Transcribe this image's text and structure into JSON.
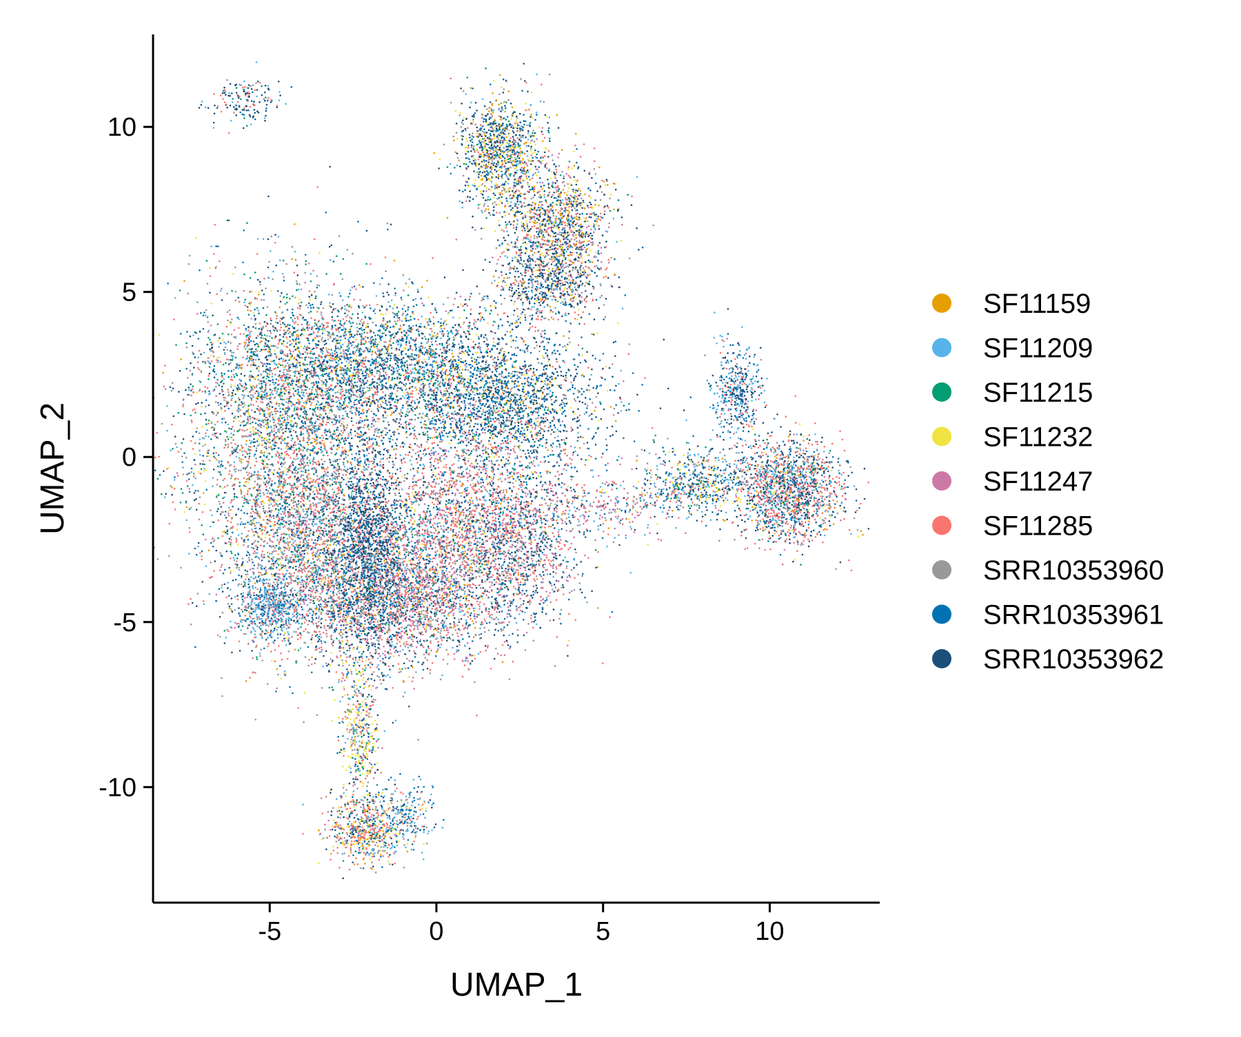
{
  "chart_data": {
    "type": "scatter",
    "title": "",
    "xlabel": "UMAP_1",
    "ylabel": "UMAP_2",
    "xlim": [
      -8.5,
      13.3
    ],
    "ylim": [
      -13.5,
      12.8
    ],
    "x_ticks": [
      -5,
      0,
      5,
      10
    ],
    "y_ticks": [
      -10,
      -5,
      0,
      5,
      10
    ],
    "x_tick_labels": [
      "-5",
      "0",
      "5",
      "10"
    ],
    "y_tick_labels": [
      "-10",
      "-5",
      "0",
      "5",
      "10"
    ],
    "grid": false,
    "legend_position": "right",
    "point_size": "tiny",
    "series": [
      {
        "name": "SF11159",
        "color": "#E69F00"
      },
      {
        "name": "SF11209",
        "color": "#56B4E9"
      },
      {
        "name": "SF11215",
        "color": "#009E73"
      },
      {
        "name": "SF11232",
        "color": "#F0E442"
      },
      {
        "name": "SF11247",
        "color": "#CC79A7"
      },
      {
        "name": "SF11285",
        "color": "#F8766D"
      },
      {
        "name": "SRR10353960",
        "color": "#999999"
      },
      {
        "name": "SRR10353961",
        "color": "#0072B2"
      },
      {
        "name": "SRR10353962",
        "color": "#1B4F7A"
      }
    ],
    "clusters": [
      {
        "name": "main-upper-left",
        "cx": -4.5,
        "cy": 1.0,
        "sx": 1.6,
        "sy": 2.2,
        "n": 3500,
        "weights": [
          1,
          4,
          3,
          2,
          1,
          6,
          5,
          3,
          3
        ]
      },
      {
        "name": "main-top-band",
        "cx": -1.5,
        "cy": 2.8,
        "sx": 2.2,
        "sy": 1.0,
        "n": 2600,
        "weights": [
          1,
          3,
          2,
          1,
          1,
          3,
          2,
          6,
          6
        ]
      },
      {
        "name": "main-upper-right",
        "cx": 2.0,
        "cy": 1.6,
        "sx": 1.5,
        "sy": 1.0,
        "n": 1800,
        "weights": [
          1,
          2,
          1,
          1,
          1,
          1,
          2,
          7,
          8
        ]
      },
      {
        "name": "main-center",
        "cx": 1.0,
        "cy": -1.8,
        "sx": 1.6,
        "sy": 1.4,
        "n": 2400,
        "weights": [
          1,
          3,
          1,
          1,
          6,
          8,
          3,
          3,
          3
        ]
      },
      {
        "name": "main-lower-left",
        "cx": -3.6,
        "cy": -3.0,
        "sx": 1.3,
        "sy": 1.6,
        "n": 2600,
        "weights": [
          1,
          3,
          1,
          1,
          3,
          6,
          6,
          3,
          4
        ]
      },
      {
        "name": "main-lower-center",
        "cx": -0.8,
        "cy": -4.3,
        "sx": 1.4,
        "sy": 1.0,
        "n": 2300,
        "weights": [
          1,
          3,
          1,
          1,
          7,
          6,
          4,
          4,
          5
        ]
      },
      {
        "name": "main-dark-ridge",
        "cx": -2.0,
        "cy": -2.5,
        "sx": 0.5,
        "sy": 1.8,
        "n": 1200,
        "weights": [
          0,
          1,
          0,
          0,
          1,
          1,
          1,
          3,
          9
        ]
      },
      {
        "name": "main-left-blob",
        "cx": -5.0,
        "cy": -4.6,
        "sx": 0.5,
        "sy": 0.45,
        "n": 500,
        "weights": [
          0,
          8,
          0,
          0,
          1,
          1,
          2,
          2,
          2
        ]
      },
      {
        "name": "main-right-lobe",
        "cx": 2.6,
        "cy": -2.8,
        "sx": 0.8,
        "sy": 1.2,
        "n": 700,
        "weights": [
          0,
          1,
          0,
          0,
          4,
          3,
          2,
          3,
          7
        ]
      },
      {
        "name": "top-island-upper",
        "cx": 1.9,
        "cy": 9.2,
        "sx": 0.6,
        "sy": 0.9,
        "n": 1100,
        "weights": [
          2,
          2,
          1,
          4,
          1,
          2,
          3,
          3,
          8
        ]
      },
      {
        "name": "top-island-mid",
        "cx": 3.6,
        "cy": 7.0,
        "sx": 0.8,
        "sy": 1.0,
        "n": 1300,
        "weights": [
          3,
          2,
          1,
          3,
          4,
          5,
          4,
          3,
          8
        ]
      },
      {
        "name": "top-island-lower",
        "cx": 3.3,
        "cy": 5.2,
        "sx": 0.8,
        "sy": 0.6,
        "n": 600,
        "weights": [
          1,
          2,
          0,
          1,
          1,
          2,
          3,
          2,
          8
        ]
      },
      {
        "name": "right-island-main",
        "cx": 10.6,
        "cy": -1.0,
        "sx": 0.8,
        "sy": 0.8,
        "n": 1600,
        "weights": [
          1,
          4,
          1,
          1,
          2,
          8,
          2,
          3,
          7
        ]
      },
      {
        "name": "right-island-top",
        "cx": 9.0,
        "cy": 1.9,
        "sx": 0.35,
        "sy": 0.8,
        "n": 450,
        "weights": [
          0,
          6,
          0,
          0,
          1,
          2,
          1,
          3,
          6
        ]
      },
      {
        "name": "right-island-left",
        "cx": 7.8,
        "cy": -0.8,
        "sx": 0.9,
        "sy": 0.5,
        "n": 600,
        "weights": [
          1,
          4,
          1,
          2,
          1,
          2,
          2,
          3,
          5
        ]
      },
      {
        "name": "bridge",
        "cx": 5.2,
        "cy": -1.5,
        "sx": 1.2,
        "sy": 0.4,
        "n": 250,
        "weights": [
          1,
          2,
          0,
          1,
          5,
          3,
          1,
          1,
          1
        ]
      },
      {
        "name": "tail-stem",
        "cx": -2.3,
        "cy": -8.5,
        "sx": 0.3,
        "sy": 1.2,
        "n": 450,
        "weights": [
          0,
          2,
          1,
          5,
          1,
          3,
          3,
          2,
          2
        ]
      },
      {
        "name": "tail-bottom",
        "cx": -2.1,
        "cy": -11.3,
        "sx": 0.6,
        "sy": 0.5,
        "n": 600,
        "weights": [
          2,
          2,
          1,
          4,
          2,
          6,
          3,
          3,
          3
        ]
      },
      {
        "name": "tail-right-arm",
        "cx": -0.8,
        "cy": -10.8,
        "sx": 0.4,
        "sy": 0.5,
        "n": 200,
        "weights": [
          0,
          6,
          0,
          1,
          0,
          1,
          1,
          4,
          2
        ]
      },
      {
        "name": "far-top-left-streak",
        "cx": -5.8,
        "cy": 10.8,
        "sx": 0.6,
        "sy": 0.35,
        "n": 150,
        "weights": [
          0,
          2,
          1,
          0,
          0,
          3,
          1,
          2,
          8
        ]
      }
    ]
  }
}
